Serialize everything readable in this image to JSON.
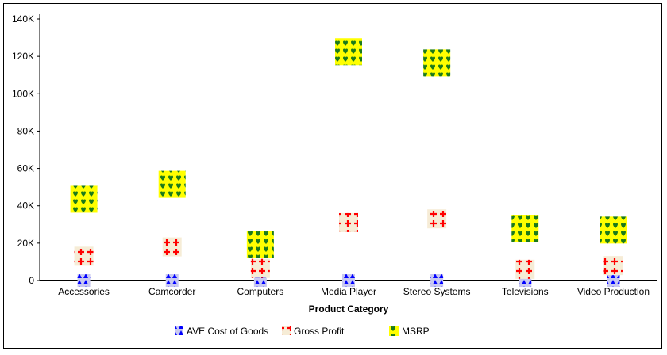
{
  "chart_data": {
    "type": "scatter",
    "title": "",
    "xlabel": "Product Category",
    "ylabel": "",
    "ylim": [
      0,
      140000
    ],
    "yticks": [
      0,
      20000,
      40000,
      60000,
      80000,
      100000,
      120000,
      140000
    ],
    "ytick_labels": [
      "0",
      "20K",
      "40K",
      "60K",
      "80K",
      "100K",
      "120K",
      "140K"
    ],
    "categories": [
      "Accessories",
      "Camcorder",
      "Computers",
      "Media Player",
      "Stereo Systems",
      "Televisions",
      "Video Production"
    ],
    "series": [
      {
        "name": "AVE Cost of Goods",
        "marker": "blue-triangle-pattern",
        "color": "#0000ff",
        "values": [
          0,
          0,
          0,
          0,
          0,
          0,
          0
        ]
      },
      {
        "name": "Gross Profit",
        "marker": "red-cross-pattern",
        "color": "#ff0000",
        "values": [
          13000,
          18000,
          6500,
          31000,
          33000,
          6000,
          8000
        ]
      },
      {
        "name": "MSRP",
        "marker": "green-heart-on-yellow",
        "color": "#ffff00",
        "values": [
          43500,
          51500,
          19500,
          122500,
          116500,
          28000,
          27000
        ]
      }
    ],
    "legend_position": "bottom",
    "grid": false
  }
}
